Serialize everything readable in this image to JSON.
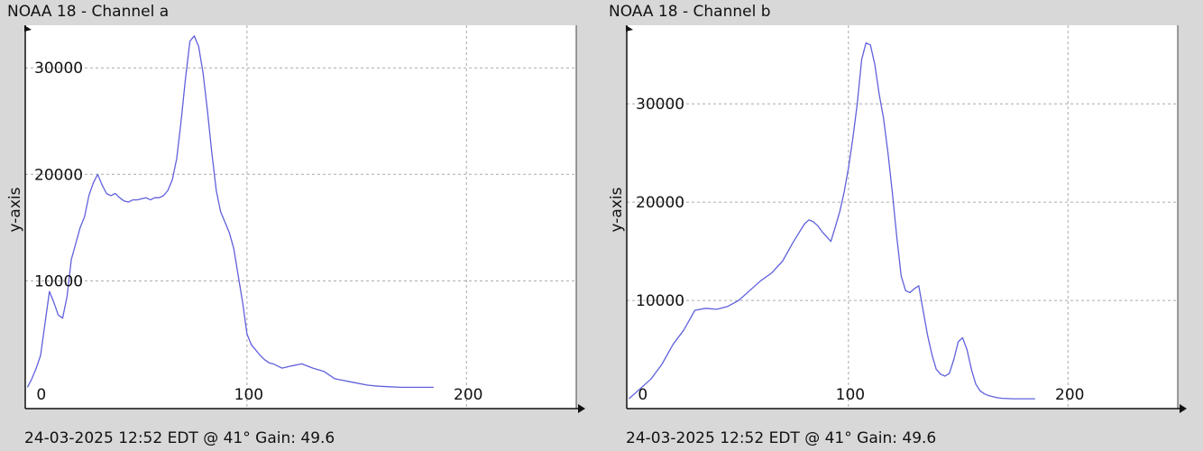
{
  "chart_data": [
    {
      "type": "line",
      "title": "NOAA 18 - Channel a",
      "footer": "24-03-2025 12:52 EDT @ 41° Gain: 49.6",
      "ylabel": "y-axis",
      "xlabel": "",
      "xlim": [
        -1,
        250
      ],
      "ylim": [
        -2000,
        34000
      ],
      "x_ticks": [
        0,
        100,
        200
      ],
      "y_ticks": [
        10000,
        20000,
        30000
      ],
      "grid": true,
      "color": "#6060dd",
      "series": [
        {
          "x": [
            0,
            2,
            4,
            6,
            8,
            10,
            12,
            14,
            16,
            18,
            20,
            22,
            24,
            26,
            28,
            30,
            32,
            34,
            36,
            38,
            40,
            42,
            44,
            46,
            48,
            50,
            52,
            54,
            56,
            58,
            60,
            62,
            64,
            66,
            68,
            70,
            72,
            74,
            76,
            78,
            80,
            82,
            84,
            86,
            88,
            90,
            92,
            94,
            96,
            98,
            100,
            102,
            104,
            106,
            108,
            110,
            112,
            114,
            116,
            118,
            120,
            125,
            130,
            135,
            140,
            145,
            150,
            155,
            160,
            165,
            170,
            175,
            180,
            185
          ],
          "values": [
            0,
            800,
            1800,
            3000,
            6000,
            9000,
            8000,
            6800,
            6500,
            8500,
            12000,
            13500,
            15000,
            16000,
            18000,
            19200,
            20000,
            19000,
            18200,
            18000,
            18200,
            17800,
            17500,
            17400,
            17600,
            17600,
            17700,
            17800,
            17600,
            17800,
            17800,
            18000,
            18500,
            19500,
            21500,
            25000,
            29000,
            32500,
            33000,
            32000,
            29500,
            26000,
            22000,
            18500,
            16500,
            15500,
            14500,
            13000,
            10500,
            8000,
            5000,
            4000,
            3500,
            3000,
            2600,
            2300,
            2200,
            2000,
            1800,
            1900,
            2000,
            2200,
            1800,
            1500,
            800,
            600,
            400,
            200,
            100,
            50,
            0,
            0,
            0,
            0
          ]
        }
      ]
    },
    {
      "type": "line",
      "title": "NOAA 18 - Channel b",
      "footer": "24-03-2025 12:52 EDT @ 41° Gain: 49.6",
      "ylabel": "y-axis",
      "xlabel": "",
      "xlim": [
        -1,
        250
      ],
      "ylim": [
        -1000,
        38000
      ],
      "x_ticks": [
        0,
        100,
        200
      ],
      "y_ticks": [
        10000,
        20000,
        30000
      ],
      "grid": true,
      "color": "#6060dd",
      "series": [
        {
          "x": [
            0,
            5,
            10,
            15,
            20,
            25,
            30,
            35,
            40,
            45,
            50,
            55,
            60,
            65,
            70,
            75,
            80,
            82,
            84,
            86,
            88,
            90,
            92,
            94,
            96,
            98,
            100,
            102,
            104,
            106,
            108,
            110,
            112,
            114,
            116,
            118,
            120,
            122,
            124,
            126,
            128,
            130,
            132,
            134,
            136,
            138,
            140,
            142,
            144,
            146,
            148,
            150,
            152,
            154,
            156,
            158,
            160,
            162,
            164,
            166,
            168,
            170,
            175,
            180,
            185
          ],
          "values": [
            0,
            1000,
            2000,
            3500,
            5500,
            7000,
            9000,
            9200,
            9100,
            9400,
            10000,
            11000,
            12000,
            12800,
            14000,
            16000,
            17800,
            18200,
            18000,
            17600,
            17000,
            16500,
            16000,
            17500,
            19000,
            21000,
            23500,
            26500,
            30000,
            34500,
            36200,
            36000,
            34000,
            31000,
            28500,
            25000,
            21000,
            16500,
            12500,
            11000,
            10800,
            11200,
            11500,
            9000,
            6500,
            4500,
            3000,
            2500,
            2300,
            2600,
            4000,
            5800,
            6200,
            5000,
            3000,
            1500,
            800,
            500,
            300,
            200,
            100,
            50,
            0,
            0,
            0
          ]
        }
      ]
    }
  ]
}
